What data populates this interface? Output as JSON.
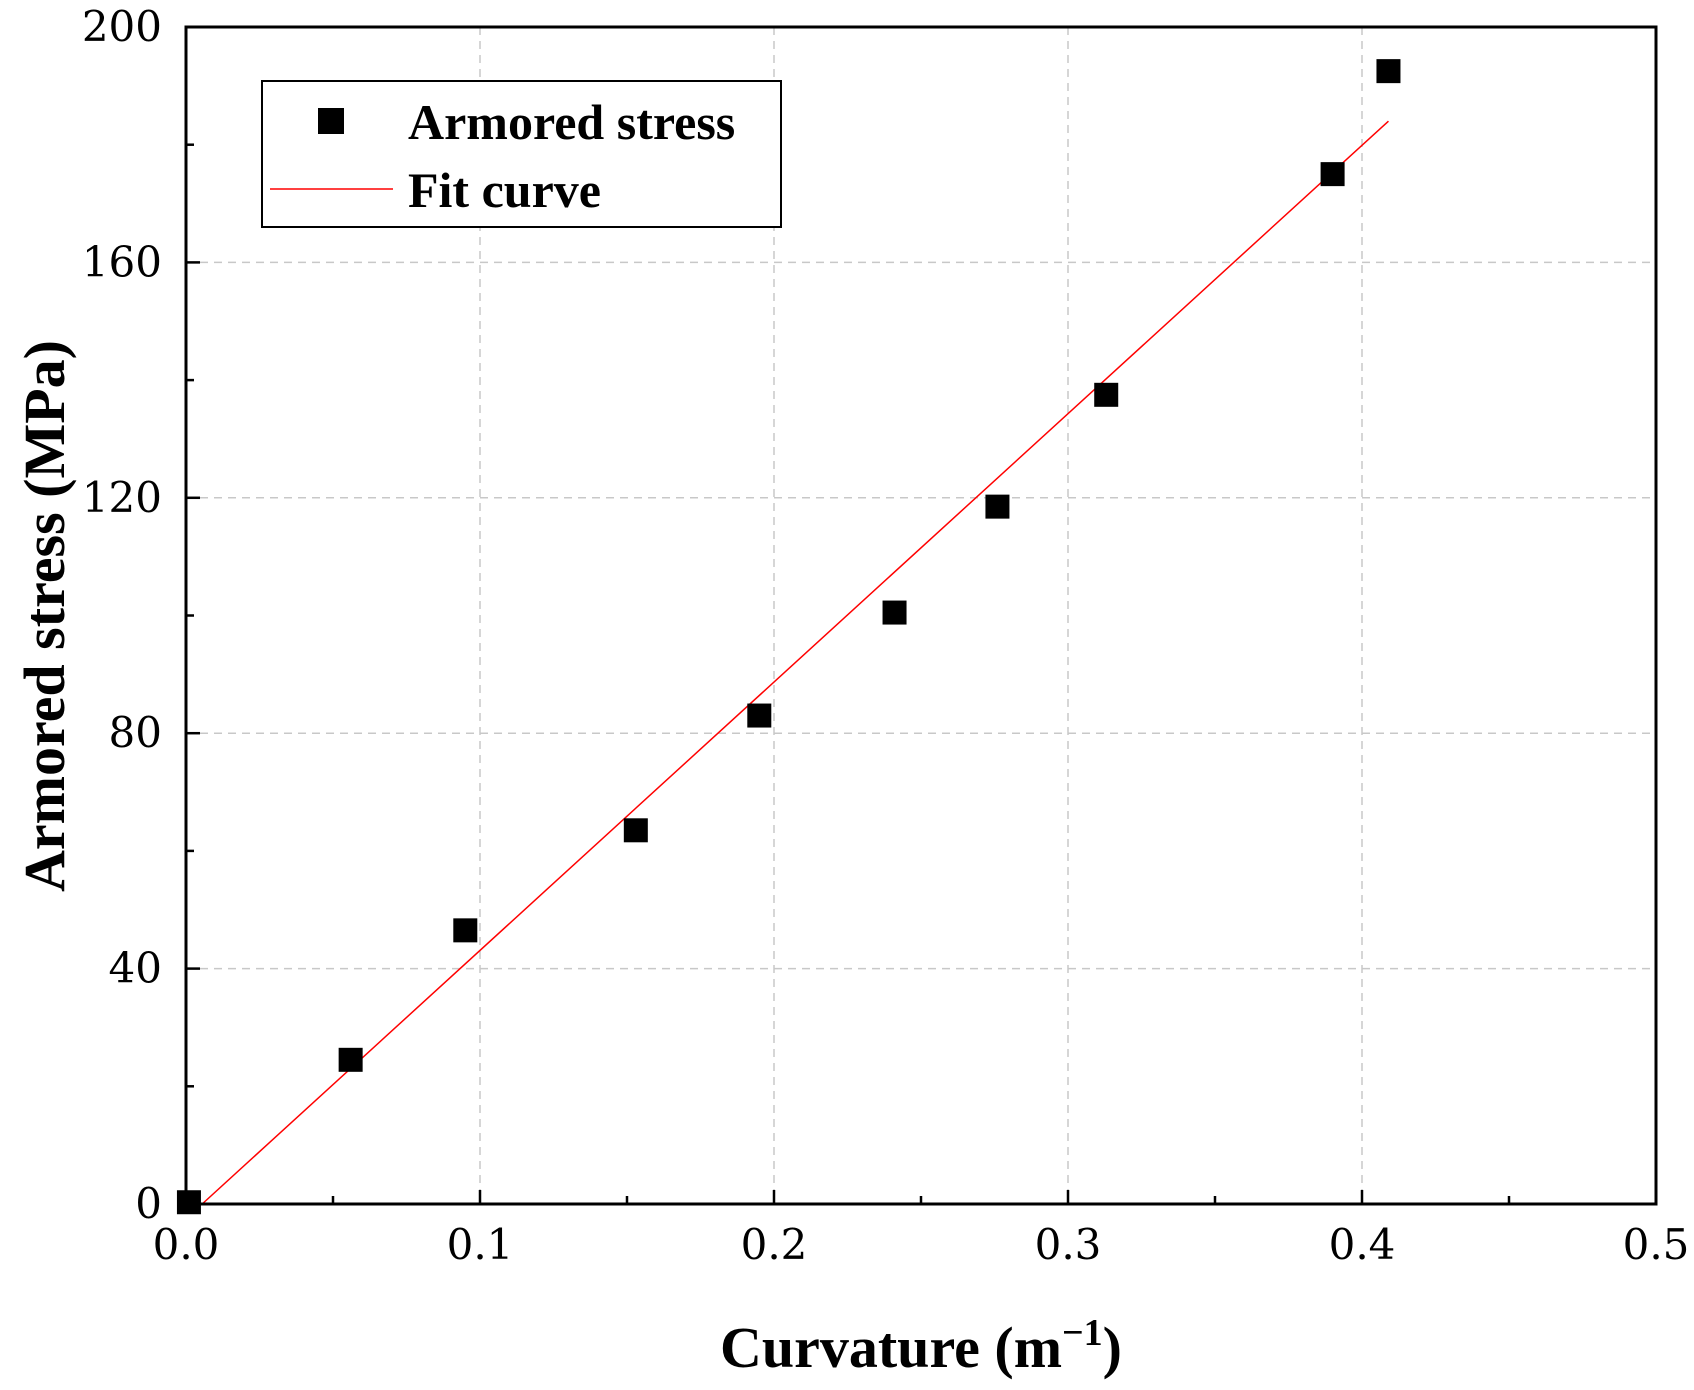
{
  "chart_data": {
    "type": "scatter",
    "title": "",
    "xlabel": "Curvature (m",
    "xlabel_sup": "−1",
    "xlabel_close": ")",
    "ylabel": "Armored stress (MPa)",
    "xlim": [
      0.0,
      0.5
    ],
    "ylim": [
      0,
      200
    ],
    "x_major_ticks": [
      0.0,
      0.1,
      0.2,
      0.3,
      0.4,
      0.5
    ],
    "x_tick_labels": [
      "0.0",
      "0.1",
      "0.2",
      "0.3",
      "0.4",
      "0.5"
    ],
    "x_minor_ticks": [
      0.05,
      0.15,
      0.25,
      0.35,
      0.45
    ],
    "y_major_ticks": [
      0,
      40,
      80,
      120,
      160,
      200
    ],
    "y_tick_labels": [
      "0",
      "40",
      "80",
      "120",
      "160",
      "200"
    ],
    "y_minor_ticks": [
      20,
      60,
      100,
      140,
      180
    ],
    "grid": true,
    "legend_position": "top-left",
    "series": [
      {
        "name": "Armored stress",
        "kind": "scatter",
        "marker": "square",
        "color": "#000000",
        "x": [
          0.001,
          0.056,
          0.095,
          0.153,
          0.195,
          0.241,
          0.276,
          0.313,
          0.39,
          0.409
        ],
        "y": [
          0.3,
          24.5,
          46.5,
          63.5,
          83.0,
          100.5,
          118.5,
          137.5,
          175.0,
          192.5
        ]
      },
      {
        "name": "Fit curve",
        "kind": "line",
        "color": "#ff0000",
        "x": [
          0.0055,
          0.409
        ],
        "y": [
          0,
          184
        ]
      }
    ]
  }
}
